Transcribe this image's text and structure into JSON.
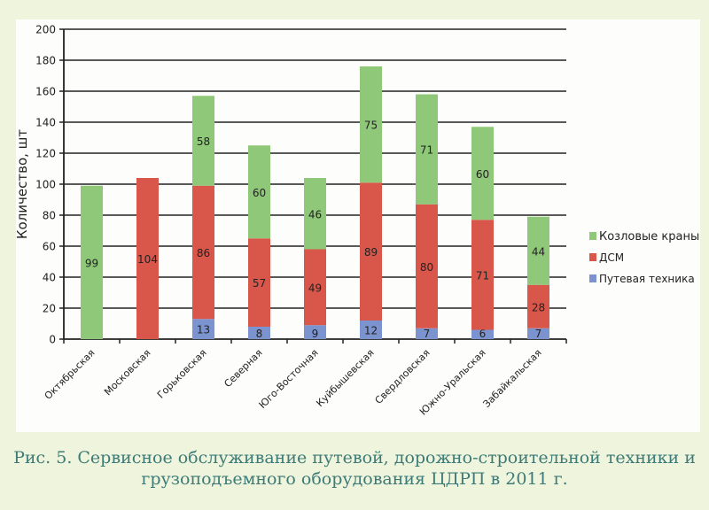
{
  "chart_data": {
    "type": "bar",
    "stacked": true,
    "title": "",
    "xlabel": "",
    "ylabel": "Количество, шт",
    "ylim": [
      0,
      200
    ],
    "yticks": [
      0,
      20,
      40,
      60,
      80,
      100,
      120,
      140,
      160,
      180,
      200
    ],
    "grid": true,
    "legend_position": "right",
    "categories": [
      "Октябрьская",
      "Московская",
      "Горьковская",
      "Северная",
      "Юго-Восточная",
      "Куйбышевская",
      "Свердловская",
      "Южно-Уральская",
      "Забайкальская"
    ],
    "series": [
      {
        "name": "Путевая техника",
        "color": "#7b93cf",
        "values": [
          0,
          0,
          13,
          8,
          9,
          12,
          7,
          6,
          7
        ]
      },
      {
        "name": "ДСМ",
        "color": "#d9564b",
        "values": [
          0,
          104,
          86,
          57,
          49,
          89,
          80,
          71,
          28
        ]
      },
      {
        "name": "Козловые краны",
        "color": "#8fc878",
        "values": [
          99,
          0,
          58,
          60,
          46,
          75,
          71,
          60,
          44
        ]
      }
    ],
    "legend_order": [
      "Козловые краны",
      "ДСМ",
      "Путевая техника"
    ]
  },
  "caption": {
    "line1": "Рис. 5. Сервисное обслуживание путевой, дорожно-строительной техники и",
    "line2": "грузоподъемного оборудования ЦДРП в 2011 г."
  }
}
